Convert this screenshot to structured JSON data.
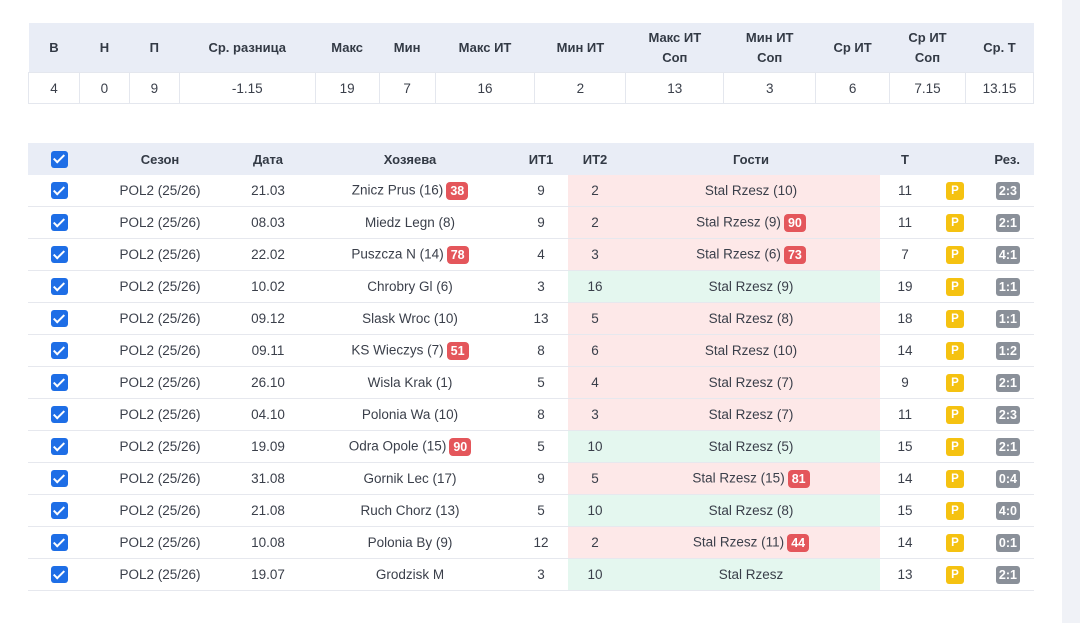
{
  "stats": {
    "headers": [
      "В",
      "Н",
      "П",
      "Ср. разница",
      "Макс",
      "Мин",
      "Макс ИТ",
      "Мин ИТ",
      "Макс ИТ Соп",
      "Мин ИТ Соп",
      "Ср ИТ",
      "Ср ИТ Соп",
      "Ср. Т"
    ],
    "values": [
      "4",
      "0",
      "9",
      "-1.15",
      "19",
      "7",
      "16",
      "2",
      "13",
      "3",
      "6",
      "7.15",
      "13.15"
    ]
  },
  "table": {
    "headers": {
      "season": "Сезон",
      "date": "Дата",
      "home": "Хозяева",
      "it1": "ИТ1",
      "it2": "ИТ2",
      "guests": "Гости",
      "total": "Т",
      "p": "",
      "result": "Рез."
    },
    "rows": [
      {
        "season": "POL2 (25/26)",
        "date": "21.03",
        "home": "Znicz Prus (16)",
        "home_badge": "38",
        "it1": "9",
        "it2": "2",
        "guest": "Stal Rzesz (10)",
        "guest_badge": "",
        "total": "11",
        "p": "P",
        "result": "2:3",
        "outcome": "loss"
      },
      {
        "season": "POL2 (25/26)",
        "date": "08.03",
        "home": "Miedz Legn (8)",
        "home_badge": "",
        "it1": "9",
        "it2": "2",
        "guest": "Stal Rzesz (9)",
        "guest_badge": "90",
        "total": "11",
        "p": "P",
        "result": "2:1",
        "outcome": "loss"
      },
      {
        "season": "POL2 (25/26)",
        "date": "22.02",
        "home": "Puszcza N (14)",
        "home_badge": "78",
        "it1": "4",
        "it2": "3",
        "guest": "Stal Rzesz (6)",
        "guest_badge": "73",
        "total": "7",
        "p": "P",
        "result": "4:1",
        "outcome": "loss"
      },
      {
        "season": "POL2 (25/26)",
        "date": "10.02",
        "home": "Chrobry Gl (6)",
        "home_badge": "",
        "it1": "3",
        "it2": "16",
        "guest": "Stal Rzesz (9)",
        "guest_badge": "",
        "total": "19",
        "p": "P",
        "result": "1:1",
        "outcome": "win"
      },
      {
        "season": "POL2 (25/26)",
        "date": "09.12",
        "home": "Slask Wroc (10)",
        "home_badge": "",
        "it1": "13",
        "it2": "5",
        "guest": "Stal Rzesz (8)",
        "guest_badge": "",
        "total": "18",
        "p": "P",
        "result": "1:1",
        "outcome": "loss"
      },
      {
        "season": "POL2 (25/26)",
        "date": "09.11",
        "home": "KS Wieczys (7)",
        "home_badge": "51",
        "it1": "8",
        "it2": "6",
        "guest": "Stal Rzesz (10)",
        "guest_badge": "",
        "total": "14",
        "p": "P",
        "result": "1:2",
        "outcome": "loss"
      },
      {
        "season": "POL2 (25/26)",
        "date": "26.10",
        "home": "Wisla Krak (1)",
        "home_badge": "",
        "it1": "5",
        "it2": "4",
        "guest": "Stal Rzesz (7)",
        "guest_badge": "",
        "total": "9",
        "p": "P",
        "result": "2:1",
        "outcome": "loss"
      },
      {
        "season": "POL2 (25/26)",
        "date": "04.10",
        "home": "Polonia Wa (10)",
        "home_badge": "",
        "it1": "8",
        "it2": "3",
        "guest": "Stal Rzesz (7)",
        "guest_badge": "",
        "total": "11",
        "p": "P",
        "result": "2:3",
        "outcome": "loss"
      },
      {
        "season": "POL2 (25/26)",
        "date": "19.09",
        "home": "Odra Opole (15)",
        "home_badge": "90",
        "it1": "5",
        "it2": "10",
        "guest": "Stal Rzesz (5)",
        "guest_badge": "",
        "total": "15",
        "p": "P",
        "result": "2:1",
        "outcome": "win"
      },
      {
        "season": "POL2 (25/26)",
        "date": "31.08",
        "home": "Gornik Lec (17)",
        "home_badge": "",
        "it1": "9",
        "it2": "5",
        "guest": "Stal Rzesz (15)",
        "guest_badge": "81",
        "total": "14",
        "p": "P",
        "result": "0:4",
        "outcome": "loss"
      },
      {
        "season": "POL2 (25/26)",
        "date": "21.08",
        "home": "Ruch Chorz (13)",
        "home_badge": "",
        "it1": "5",
        "it2": "10",
        "guest": "Stal Rzesz (8)",
        "guest_badge": "",
        "total": "15",
        "p": "P",
        "result": "4:0",
        "outcome": "win"
      },
      {
        "season": "POL2 (25/26)",
        "date": "10.08",
        "home": "Polonia By (9)",
        "home_badge": "",
        "it1": "12",
        "it2": "2",
        "guest": "Stal Rzesz (11)",
        "guest_badge": "44",
        "total": "14",
        "p": "P",
        "result": "0:1",
        "outcome": "loss"
      },
      {
        "season": "POL2 (25/26)",
        "date": "19.07",
        "home": "Grodzisk M",
        "home_badge": "",
        "it1": "3",
        "it2": "10",
        "guest": "Stal Rzesz",
        "guest_badge": "",
        "total": "13",
        "p": "P",
        "result": "2:1",
        "outcome": "win"
      }
    ]
  },
  "colors": {
    "checkbox": "#1e6ee6",
    "loss_bg": "#fde8e8",
    "win_bg": "#e4f7ef",
    "badge_red": "#e4565b",
    "badge_p": "#f5c211",
    "badge_result": "#8a9099",
    "header_bg": "#e9edf6"
  },
  "icons": {
    "checkbox": "checkbox-checked-icon"
  }
}
